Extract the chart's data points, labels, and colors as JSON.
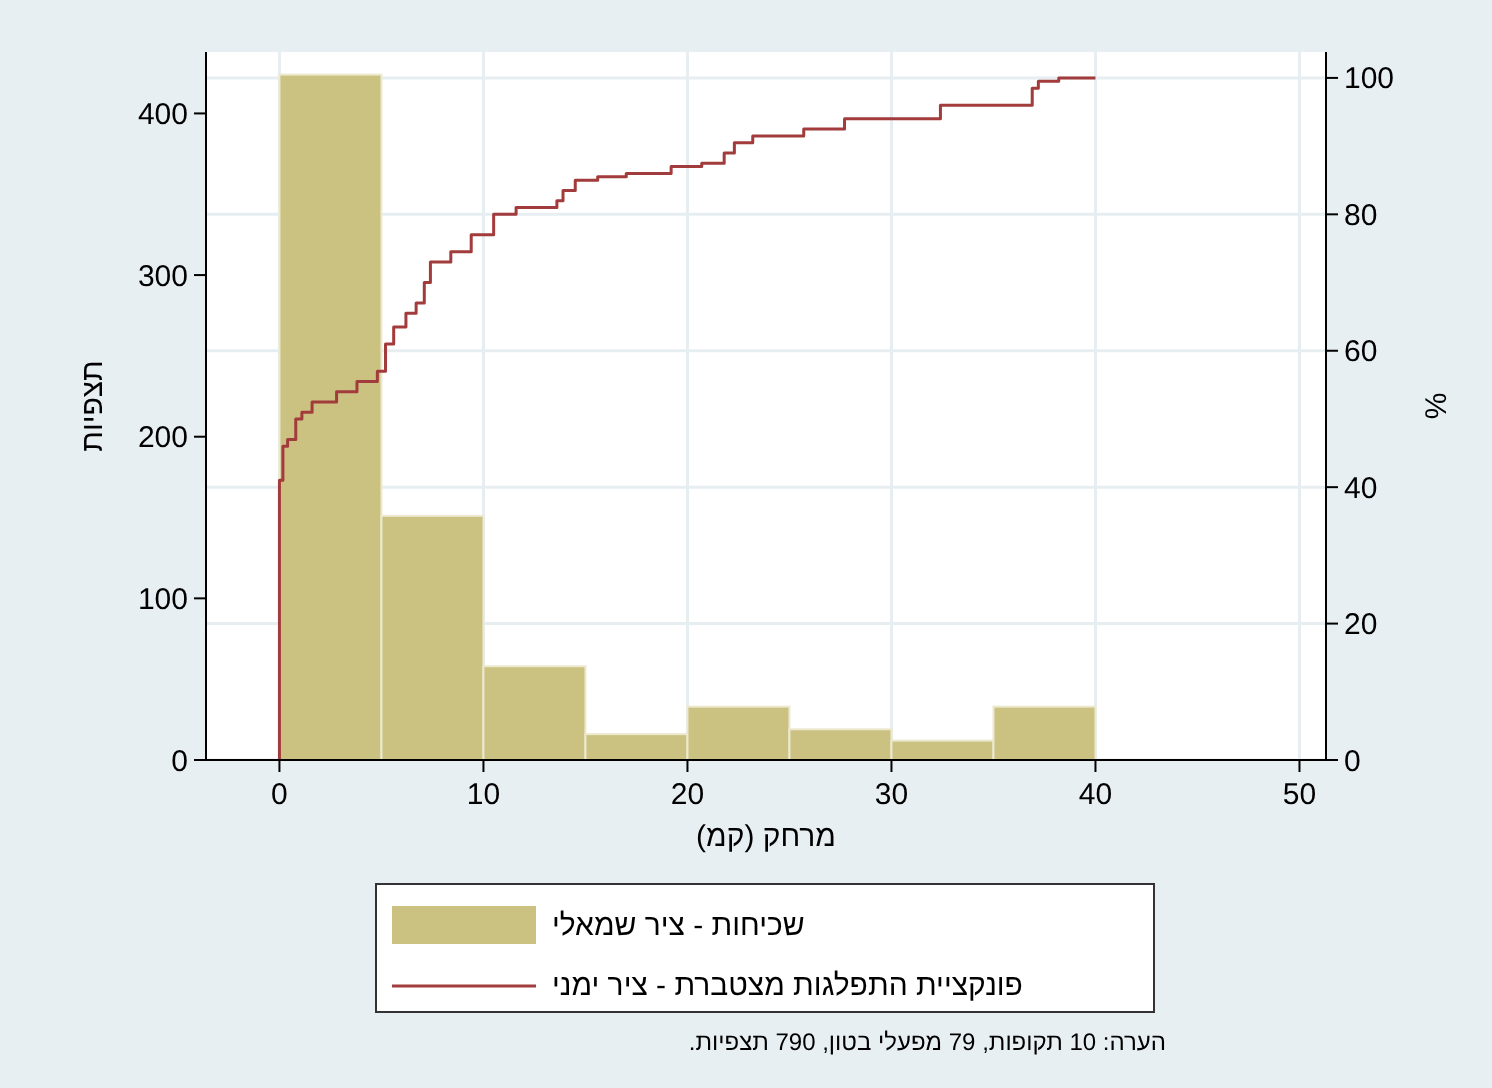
{
  "chart_data": {
    "type": "histogram",
    "xlabel": "מרחק (קמ)",
    "ylabel": "תצפיות",
    "y2label": "%",
    "annotations": [
      "הערה: 10 תקופות, 79 מפעלי בטון, 790 תצפיות."
    ],
    "bins": [
      0,
      5,
      10,
      15,
      20,
      25,
      30,
      35,
      40
    ],
    "series": [
      {
        "type": "histogram",
        "name": "שכיחות - ציר שמאלי",
        "color": "#cbc281",
        "values": [
          424,
          151,
          58,
          16,
          33,
          19,
          12,
          33
        ]
      },
      {
        "type": "step",
        "axis": "y2",
        "name": "פונקציית התפלגות מצטברת - ציר ימני",
        "color": "#a23b3b",
        "x": [
          0,
          0,
          0.17,
          0.4,
          0.8,
          1.1,
          1.6,
          2.8,
          3.8,
          4.8,
          5.2,
          5.6,
          6.2,
          6.7,
          7.1,
          7.4,
          8.4,
          9.4,
          10.5,
          11.6,
          13.6,
          13.9,
          14.5,
          15.6,
          17,
          19.2,
          20.7,
          21.8,
          22.3,
          23.2,
          25.5,
          25.7,
          27.7,
          32.4,
          36.9,
          37.2,
          38.2,
          40
        ],
        "values": [
          0,
          41,
          46,
          47,
          50,
          51,
          52.5,
          54,
          55.5,
          57,
          61,
          63.5,
          65.5,
          67,
          70,
          73,
          74.5,
          77,
          80,
          81,
          82,
          83.5,
          85,
          85.5,
          86,
          87,
          87.5,
          89,
          90.5,
          91.5,
          91.5,
          92.5,
          94,
          96,
          98.5,
          99.5,
          100,
          100
        ]
      }
    ],
    "xlim": [
      -3.6,
      51.3
    ],
    "xticks": [
      0,
      10,
      20,
      30,
      40,
      50
    ],
    "ylim": [
      0,
      438
    ],
    "yticks": [
      0,
      100,
      200,
      300,
      400
    ],
    "y2lim": [
      0,
      103.8
    ],
    "y2ticks": [
      0,
      20,
      40,
      60,
      80,
      100
    ],
    "grid": true,
    "legend": "bottom"
  }
}
